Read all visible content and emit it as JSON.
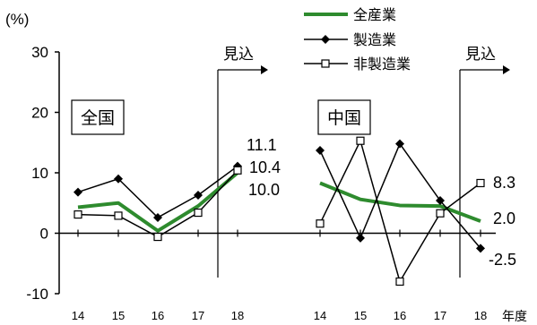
{
  "chart_data": {
    "type": "line",
    "y_unit": "(%)",
    "ylim": [
      -10,
      30
    ],
    "y_ticks": [
      -10,
      0,
      10,
      20,
      30
    ],
    "x_axis_label": "年度",
    "forecast_label": "見込",
    "legend": {
      "position": "top",
      "entries": [
        "全産業",
        "製造業",
        "非製造業"
      ]
    },
    "colors": {
      "all_industries": "#2e8b2e",
      "manufacturing": "#000000",
      "non_manufacturing": "#000000"
    },
    "panels": [
      {
        "title": "全国",
        "categories": [
          "14",
          "15",
          "16",
          "17",
          "18"
        ],
        "series": [
          {
            "name": "全産業",
            "values": [
              4.3,
              5.0,
              0.4,
              4.5,
              10.0
            ]
          },
          {
            "name": "製造業",
            "values": [
              6.8,
              9.0,
              2.6,
              6.3,
              11.1
            ]
          },
          {
            "name": "非製造業",
            "values": [
              3.1,
              2.9,
              -0.6,
              3.4,
              10.4
            ]
          }
        ],
        "end_labels": [
          "11.1",
          "10.4",
          "10.0"
        ]
      },
      {
        "title": "中国",
        "categories": [
          "14",
          "15",
          "16",
          "17",
          "18"
        ],
        "series": [
          {
            "name": "全産業",
            "values": [
              8.3,
              5.6,
              4.6,
              4.5,
              2.0
            ]
          },
          {
            "name": "製造業",
            "values": [
              13.7,
              -0.8,
              14.8,
              5.4,
              -2.5
            ]
          },
          {
            "name": "非製造業",
            "values": [
              1.6,
              15.3,
              -8.0,
              3.3,
              8.3
            ]
          }
        ],
        "end_labels": [
          "8.3",
          "2.0",
          "-2.5"
        ]
      }
    ]
  }
}
